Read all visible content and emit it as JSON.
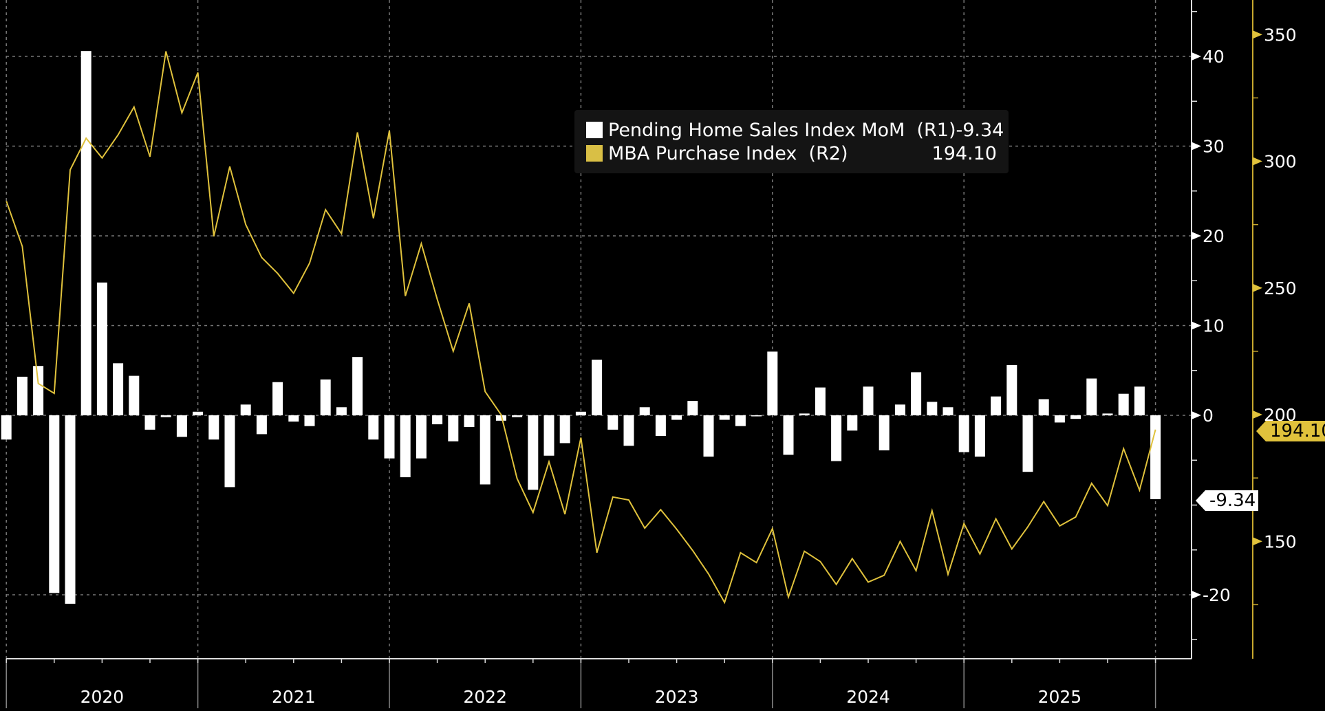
{
  "chart_data": {
    "type": "bar+line",
    "x": [
      "2019-12",
      "2020-01",
      "2020-02",
      "2020-03",
      "2020-04",
      "2020-05",
      "2020-06",
      "2020-07",
      "2020-08",
      "2020-09",
      "2020-10",
      "2020-11",
      "2020-12",
      "2021-01",
      "2021-02",
      "2021-03",
      "2021-04",
      "2021-05",
      "2021-06",
      "2021-07",
      "2021-08",
      "2021-09",
      "2021-10",
      "2021-11",
      "2021-12",
      "2022-01",
      "2022-02",
      "2022-03",
      "2022-04",
      "2022-05",
      "2022-06",
      "2022-07",
      "2022-08",
      "2022-09",
      "2022-10",
      "2022-11",
      "2022-12",
      "2023-01",
      "2023-02",
      "2023-03",
      "2023-04",
      "2023-05",
      "2023-06",
      "2023-07",
      "2023-08",
      "2023-09",
      "2023-10",
      "2023-11",
      "2023-12",
      "2024-01",
      "2024-02",
      "2024-03",
      "2024-04",
      "2024-05",
      "2024-06",
      "2024-07",
      "2024-08",
      "2024-09",
      "2024-10",
      "2024-11",
      "2024-12",
      "2025-01",
      "2025-02",
      "2025-03",
      "2025-04",
      "2025-05",
      "2025-06",
      "2025-07",
      "2025-08",
      "2025-09",
      "2025-10",
      "2025-11",
      "2025-12"
    ],
    "year_labels": [
      "2020",
      "2021",
      "2022",
      "2023",
      "2024",
      "2025"
    ],
    "series": [
      {
        "name": "Pending Home Sales Index MoM  (R1)",
        "type": "bar",
        "axis": "R1",
        "color": "#ffffff",
        "last_value": "-9.34",
        "values": [
          -2.7,
          4.3,
          5.5,
          -19.8,
          -21.0,
          40.6,
          14.8,
          5.8,
          4.4,
          -1.6,
          -0.2,
          -2.4,
          0.4,
          -2.7,
          -8.0,
          1.2,
          -2.1,
          3.7,
          -0.7,
          -1.2,
          4.0,
          0.9,
          6.5,
          -2.7,
          -4.8,
          -6.9,
          -4.8,
          -1.0,
          -2.9,
          -1.3,
          -7.7,
          -0.6,
          -0.2,
          -8.3,
          -4.5,
          -3.1,
          0.4,
          6.2,
          -1.6,
          -3.4,
          0.9,
          -2.3,
          -0.5,
          1.6,
          -4.6,
          -0.5,
          -1.2,
          -0.1,
          7.1,
          -4.4,
          0.2,
          3.1,
          -5.1,
          -1.7,
          3.2,
          -3.9,
          1.2,
          4.8,
          1.5,
          0.9,
          -4.1,
          -4.6,
          2.1,
          5.6,
          -6.3,
          1.8,
          -0.8,
          -0.4,
          4.1,
          0.2,
          2.4,
          3.2,
          -9.34
        ]
      },
      {
        "name": "MBA Purchase Index  (R2)",
        "type": "line",
        "axis": "R2",
        "color": "#e0c23c",
        "last_value": "194.10",
        "values": [
          284.3,
          266.4,
          212.3,
          208.4,
          296.6,
          309.1,
          301.3,
          310.4,
          321.4,
          301.8,
          343.4,
          319.1,
          335.0,
          270.4,
          297.9,
          275.0,
          262.0,
          255.7,
          247.9,
          259.8,
          280.9,
          271.4,
          311.4,
          277.5,
          312.1,
          246.8,
          267.5,
          245.5,
          225.0,
          243.9,
          209.1,
          200.0,
          174.8,
          161.4,
          181.4,
          160.7,
          190.9,
          145.5,
          167.5,
          166.3,
          155.2,
          162.5,
          154.8,
          146.4,
          137.1,
          125.9,
          145.5,
          141.6,
          155.0,
          128.0,
          146.1,
          142.0,
          133.0,
          143.2,
          133.9,
          136.6,
          150.0,
          138.4,
          162.1,
          137.0,
          157.0,
          145.0,
          158.9,
          147.0,
          155.7,
          165.7,
          156.1,
          159.6,
          172.9,
          164.1,
          186.6,
          170.2,
          194.1
        ]
      }
    ],
    "r1_axis": {
      "ylim": [
        -25,
        46
      ],
      "ticks": [
        "-20",
        "0",
        "10",
        "20",
        "30",
        "40"
      ]
    },
    "r2_axis": {
      "ylim": [
        115,
        365
      ],
      "ticks": [
        "150",
        "200",
        "250",
        "300",
        "350"
      ]
    },
    "grid": true,
    "legend_position": "top-center"
  },
  "legend": {
    "items": [
      {
        "label": "Pending Home Sales Index MoM  (R1)",
        "value": "-9.34",
        "color": "#ffffff"
      },
      {
        "label": "MBA Purchase Index  (R2)",
        "value": "194.10",
        "color": "#d9bf45"
      }
    ]
  },
  "tags": {
    "r1_last": "-9.34",
    "r2_last": "194.10"
  }
}
